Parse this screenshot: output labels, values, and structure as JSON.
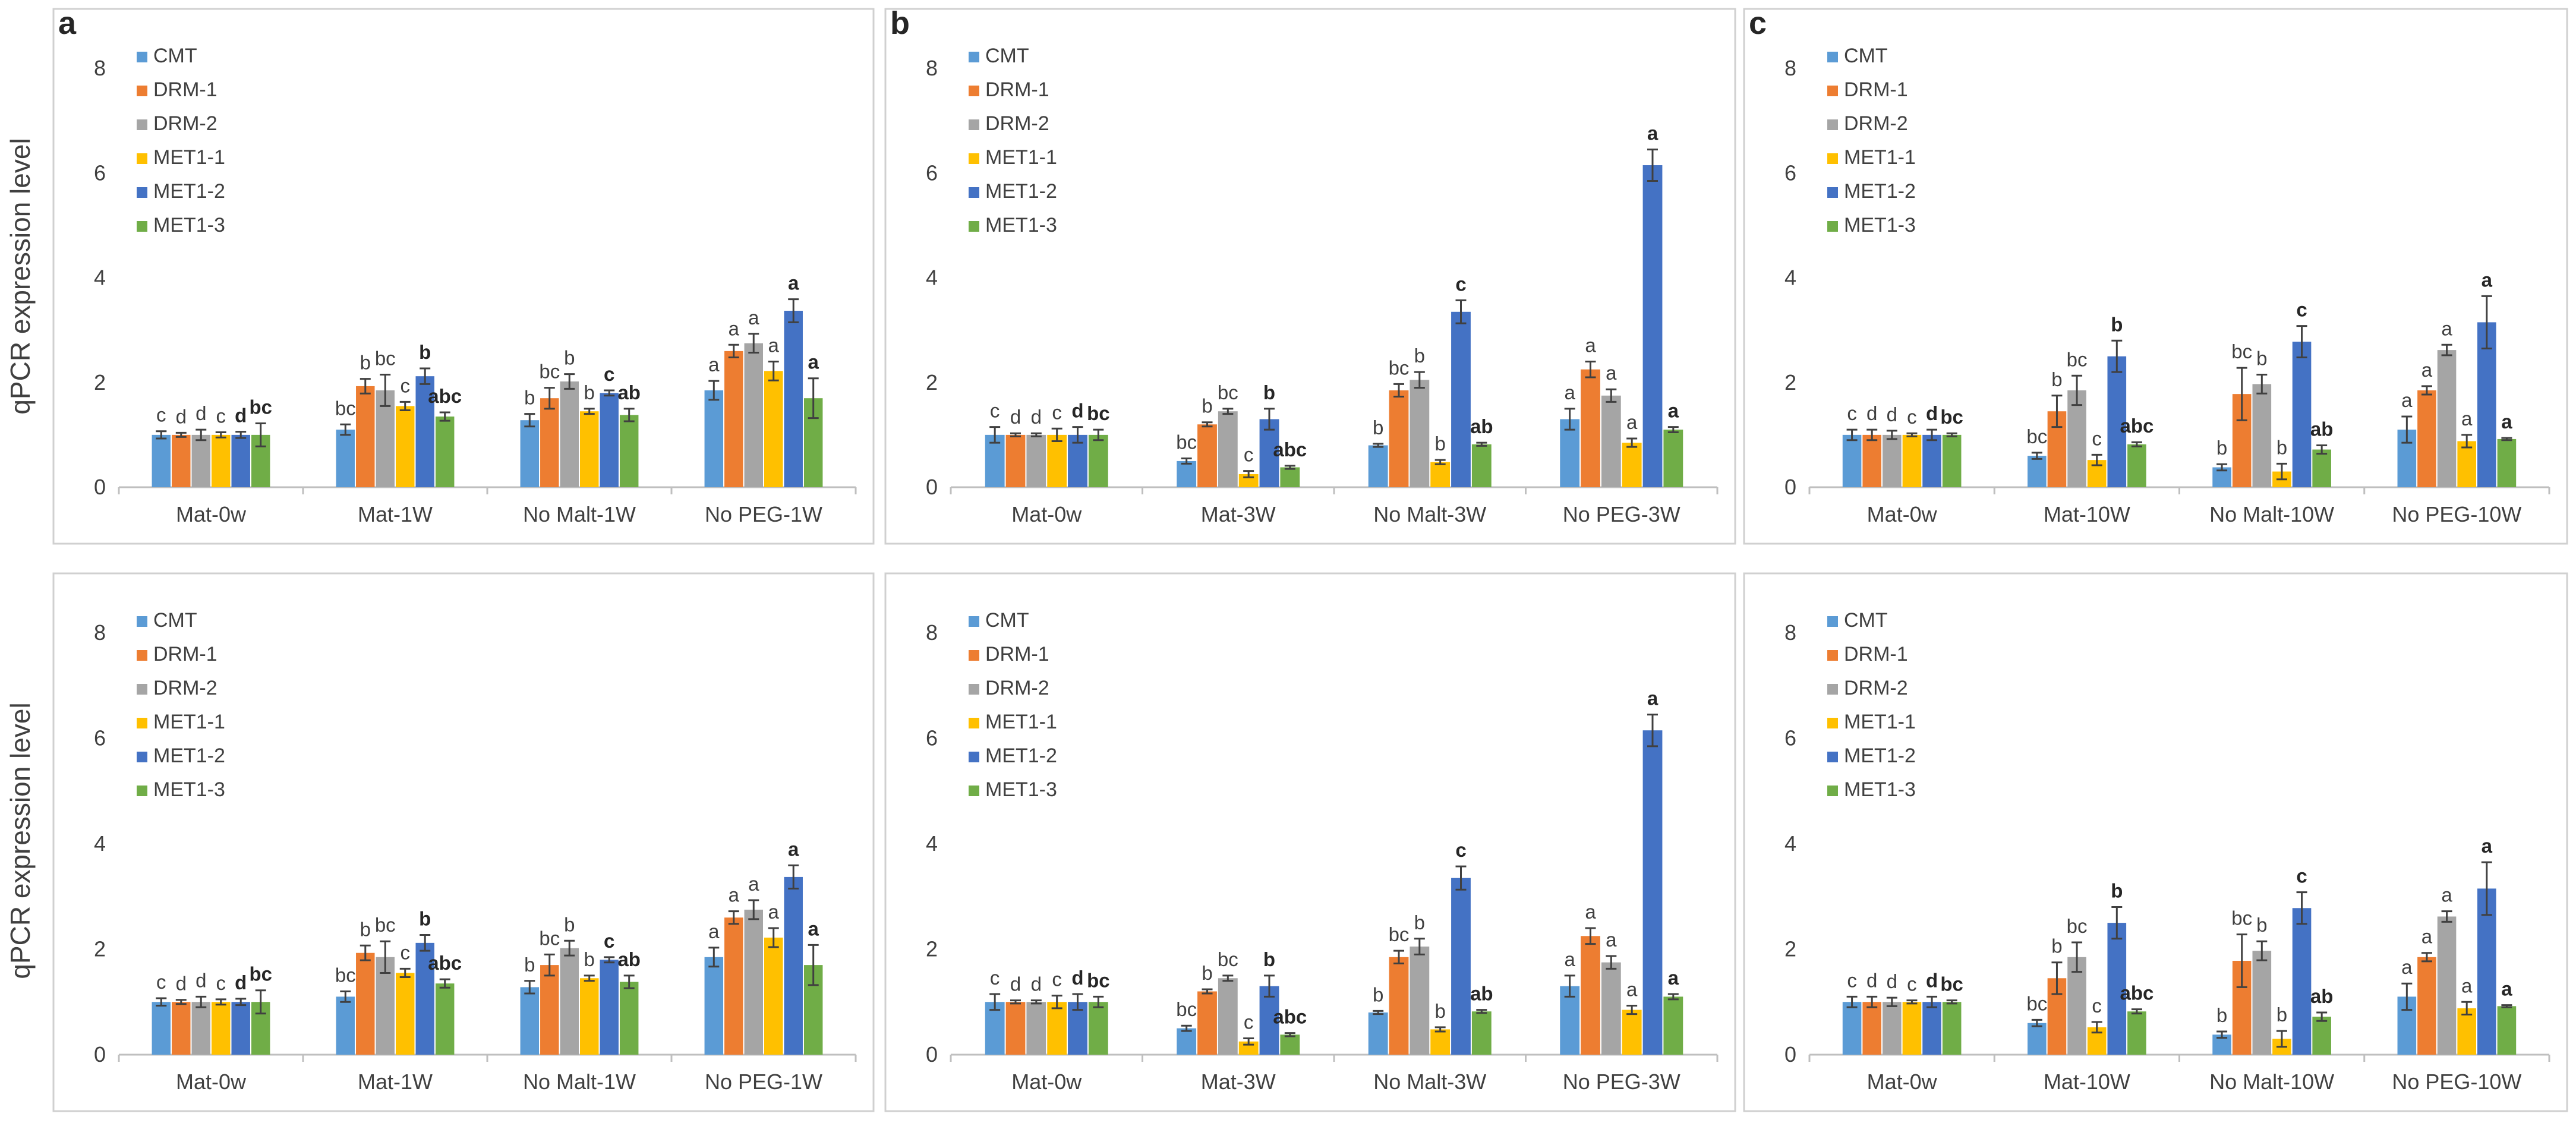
{
  "chart_data": [
    {
      "type": "bar",
      "panel_letter": "a",
      "ylabel": "qPCR expression level",
      "ylim": [
        0,
        8
      ],
      "yticks": [
        "0",
        "2",
        "4",
        "6",
        "8"
      ],
      "categories": [
        "Mat-0w",
        "Mat-1W",
        "No Malt-1W",
        "No PEG-1W"
      ],
      "series": [
        {
          "name": "CMT",
          "color": "#5b9bd5",
          "values": [
            1.0,
            1.1,
            1.28,
            1.85
          ],
          "errors": [
            0.07,
            0.1,
            0.12,
            0.18
          ],
          "letters": [
            "c",
            "bc",
            "b",
            "a"
          ]
        },
        {
          "name": "DRM-1",
          "color": "#ed7d31",
          "values": [
            1.0,
            1.93,
            1.7,
            2.6
          ],
          "errors": [
            0.04,
            0.14,
            0.2,
            0.12
          ],
          "letters": [
            "d",
            "b",
            "bc",
            "a"
          ]
        },
        {
          "name": "DRM-2",
          "color": "#a5a5a5",
          "values": [
            1.0,
            1.85,
            2.02,
            2.75
          ],
          "errors": [
            0.1,
            0.3,
            0.14,
            0.18
          ],
          "letters": [
            "d",
            "bc",
            "b",
            "a"
          ]
        },
        {
          "name": "MET1-1",
          "color": "#ffc000",
          "values": [
            1.0,
            1.55,
            1.45,
            2.22
          ],
          "errors": [
            0.05,
            0.08,
            0.05,
            0.18
          ],
          "letters": [
            "c",
            "c",
            "b",
            "a"
          ]
        },
        {
          "name": "MET1-2",
          "color": "#4472c4",
          "values": [
            1.0,
            2.12,
            1.8,
            3.37
          ],
          "errors": [
            0.06,
            0.15,
            0.05,
            0.22
          ],
          "letters": [
            "d",
            "b",
            "c",
            "a"
          ]
        },
        {
          "name": "MET1-3",
          "color": "#70ad47",
          "values": [
            1.0,
            1.35,
            1.38,
            1.7
          ],
          "errors": [
            0.22,
            0.08,
            0.12,
            0.38
          ],
          "letters": [
            "bc",
            "abc",
            "ab",
            "a"
          ]
        }
      ]
    },
    {
      "type": "bar",
      "panel_letter": "b",
      "ylabel": "",
      "ylim": [
        0,
        8
      ],
      "yticks": [
        "0",
        "2",
        "4",
        "6",
        "8"
      ],
      "categories": [
        "Mat-0w",
        "Mat-3W",
        "No Malt-3W",
        "No PEG-3W"
      ],
      "series": [
        {
          "name": "CMT",
          "color": "#5b9bd5",
          "values": [
            1.0,
            0.5,
            0.8,
            1.3
          ],
          "errors": [
            0.15,
            0.05,
            0.03,
            0.2
          ],
          "letters": [
            "c",
            "bc",
            "b",
            "a"
          ]
        },
        {
          "name": "DRM-1",
          "color": "#ed7d31",
          "values": [
            1.0,
            1.2,
            1.85,
            2.25
          ],
          "errors": [
            0.03,
            0.04,
            0.12,
            0.15
          ],
          "letters": [
            "d",
            "b",
            "bc",
            "a"
          ]
        },
        {
          "name": "DRM-2",
          "color": "#a5a5a5",
          "values": [
            1.0,
            1.45,
            2.05,
            1.75
          ],
          "errors": [
            0.03,
            0.05,
            0.15,
            0.12
          ],
          "letters": [
            "d",
            "bc",
            "b",
            "a"
          ]
        },
        {
          "name": "MET1-1",
          "color": "#ffc000",
          "values": [
            1.0,
            0.25,
            0.48,
            0.85
          ],
          "errors": [
            0.12,
            0.06,
            0.04,
            0.08
          ],
          "letters": [
            "c",
            "c",
            "b",
            "a"
          ]
        },
        {
          "name": "MET1-2",
          "color": "#4472c4",
          "values": [
            1.0,
            1.3,
            3.35,
            6.15
          ],
          "errors": [
            0.15,
            0.2,
            0.22,
            0.3
          ],
          "letters": [
            "d",
            "b",
            "c",
            "a"
          ]
        },
        {
          "name": "MET1-3",
          "color": "#70ad47",
          "values": [
            1.0,
            0.38,
            0.82,
            1.1
          ],
          "errors": [
            0.1,
            0.03,
            0.03,
            0.05
          ],
          "letters": [
            "bc",
            "abc",
            "ab",
            "a"
          ]
        }
      ]
    },
    {
      "type": "bar",
      "panel_letter": "c",
      "ylabel": "",
      "ylim": [
        0,
        8
      ],
      "yticks": [
        "0",
        "2",
        "4",
        "6",
        "8"
      ],
      "categories": [
        "Mat-0w",
        "Mat-10W",
        "No Malt-10W",
        "No PEG-10W"
      ],
      "series": [
        {
          "name": "CMT",
          "color": "#5b9bd5",
          "values": [
            1.0,
            0.6,
            0.38,
            1.1
          ],
          "errors": [
            0.1,
            0.06,
            0.06,
            0.25
          ],
          "letters": [
            "c",
            "bc",
            "b",
            "a"
          ]
        },
        {
          "name": "DRM-1",
          "color": "#ed7d31",
          "values": [
            1.0,
            1.45,
            1.78,
            1.85
          ],
          "errors": [
            0.1,
            0.3,
            0.5,
            0.08
          ],
          "letters": [
            "d",
            "b",
            "bc",
            "a"
          ]
        },
        {
          "name": "DRM-2",
          "color": "#a5a5a5",
          "values": [
            1.0,
            1.85,
            1.97,
            2.62
          ],
          "errors": [
            0.08,
            0.28,
            0.18,
            0.1
          ],
          "letters": [
            "d",
            "bc",
            "b",
            "a"
          ]
        },
        {
          "name": "MET1-1",
          "color": "#ffc000",
          "values": [
            1.0,
            0.52,
            0.3,
            0.88
          ],
          "errors": [
            0.03,
            0.1,
            0.15,
            0.12
          ],
          "letters": [
            "c",
            "c",
            "b",
            "a"
          ]
        },
        {
          "name": "MET1-2",
          "color": "#4472c4",
          "values": [
            1.0,
            2.5,
            2.78,
            3.15
          ],
          "errors": [
            0.1,
            0.3,
            0.3,
            0.5
          ],
          "letters": [
            "d",
            "b",
            "c",
            "a"
          ]
        },
        {
          "name": "MET1-3",
          "color": "#70ad47",
          "values": [
            1.0,
            0.82,
            0.72,
            0.92
          ],
          "errors": [
            0.03,
            0.04,
            0.08,
            0.02
          ],
          "letters": [
            "bc",
            "abc",
            "ab",
            "a"
          ]
        }
      ]
    },
    {
      "type": "bar",
      "panel_letter": "",
      "ylabel": "qPCR expression level",
      "ylim": [
        0,
        8
      ],
      "yticks": [
        "0",
        "2",
        "4",
        "6",
        "8"
      ],
      "categories": [
        "Mat-0w",
        "Mat-1W",
        "No Malt-1W",
        "No PEG-1W"
      ],
      "series": [
        {
          "name": "CMT",
          "color": "#5b9bd5",
          "values": [
            1.0,
            1.1,
            1.28,
            1.85
          ],
          "errors": [
            0.07,
            0.1,
            0.12,
            0.18
          ],
          "letters": [
            "c",
            "bc",
            "b",
            "a"
          ]
        },
        {
          "name": "DRM-1",
          "color": "#ed7d31",
          "values": [
            1.0,
            1.93,
            1.7,
            2.6
          ],
          "errors": [
            0.04,
            0.14,
            0.2,
            0.12
          ],
          "letters": [
            "d",
            "b",
            "bc",
            "a"
          ]
        },
        {
          "name": "DRM-2",
          "color": "#a5a5a5",
          "values": [
            1.0,
            1.85,
            2.02,
            2.75
          ],
          "errors": [
            0.1,
            0.3,
            0.14,
            0.18
          ],
          "letters": [
            "d",
            "bc",
            "b",
            "a"
          ]
        },
        {
          "name": "MET1-1",
          "color": "#ffc000",
          "values": [
            1.0,
            1.55,
            1.45,
            2.22
          ],
          "errors": [
            0.05,
            0.08,
            0.05,
            0.18
          ],
          "letters": [
            "c",
            "c",
            "b",
            "a"
          ]
        },
        {
          "name": "MET1-2",
          "color": "#4472c4",
          "values": [
            1.0,
            2.12,
            1.8,
            3.37
          ],
          "errors": [
            0.06,
            0.15,
            0.05,
            0.22
          ],
          "letters": [
            "d",
            "b",
            "c",
            "a"
          ]
        },
        {
          "name": "MET1-3",
          "color": "#70ad47",
          "values": [
            1.0,
            1.35,
            1.38,
            1.7
          ],
          "errors": [
            0.22,
            0.08,
            0.12,
            0.38
          ],
          "letters": [
            "bc",
            "abc",
            "ab",
            "a"
          ]
        }
      ]
    },
    {
      "type": "bar",
      "panel_letter": "",
      "ylabel": "",
      "ylim": [
        0,
        8
      ],
      "yticks": [
        "0",
        "2",
        "4",
        "6",
        "8"
      ],
      "categories": [
        "Mat-0w",
        "Mat-3W",
        "No Malt-3W",
        "No PEG-3W"
      ],
      "series": [
        {
          "name": "CMT",
          "color": "#5b9bd5",
          "values": [
            1.0,
            0.5,
            0.8,
            1.3
          ],
          "errors": [
            0.15,
            0.05,
            0.03,
            0.2
          ],
          "letters": [
            "c",
            "bc",
            "b",
            "a"
          ]
        },
        {
          "name": "DRM-1",
          "color": "#ed7d31",
          "values": [
            1.0,
            1.2,
            1.85,
            2.25
          ],
          "errors": [
            0.03,
            0.04,
            0.12,
            0.15
          ],
          "letters": [
            "d",
            "b",
            "bc",
            "a"
          ]
        },
        {
          "name": "DRM-2",
          "color": "#a5a5a5",
          "values": [
            1.0,
            1.45,
            2.05,
            1.75
          ],
          "errors": [
            0.03,
            0.05,
            0.15,
            0.12
          ],
          "letters": [
            "d",
            "bc",
            "b",
            "a"
          ]
        },
        {
          "name": "MET1-1",
          "color": "#ffc000",
          "values": [
            1.0,
            0.25,
            0.48,
            0.85
          ],
          "errors": [
            0.12,
            0.06,
            0.04,
            0.08
          ],
          "letters": [
            "c",
            "c",
            "b",
            "a"
          ]
        },
        {
          "name": "MET1-2",
          "color": "#4472c4",
          "values": [
            1.0,
            1.3,
            3.35,
            6.15
          ],
          "errors": [
            0.15,
            0.2,
            0.22,
            0.3
          ],
          "letters": [
            "d",
            "b",
            "c",
            "a"
          ]
        },
        {
          "name": "MET1-3",
          "color": "#70ad47",
          "values": [
            1.0,
            0.38,
            0.82,
            1.1
          ],
          "errors": [
            0.1,
            0.03,
            0.03,
            0.05
          ],
          "letters": [
            "bc",
            "abc",
            "ab",
            "a"
          ]
        }
      ]
    },
    {
      "type": "bar",
      "panel_letter": "",
      "ylabel": "",
      "ylim": [
        0,
        8
      ],
      "yticks": [
        "0",
        "2",
        "4",
        "6",
        "8"
      ],
      "categories": [
        "Mat-0w",
        "Mat-10W",
        "No Malt-10W",
        "No PEG-10W"
      ],
      "series": [
        {
          "name": "CMT",
          "color": "#5b9bd5",
          "values": [
            1.0,
            0.6,
            0.38,
            1.1
          ],
          "errors": [
            0.1,
            0.06,
            0.06,
            0.25
          ],
          "letters": [
            "c",
            "bc",
            "b",
            "a"
          ]
        },
        {
          "name": "DRM-1",
          "color": "#ed7d31",
          "values": [
            1.0,
            1.45,
            1.78,
            1.85
          ],
          "errors": [
            0.1,
            0.3,
            0.5,
            0.08
          ],
          "letters": [
            "d",
            "b",
            "bc",
            "a"
          ]
        },
        {
          "name": "DRM-2",
          "color": "#a5a5a5",
          "values": [
            1.0,
            1.85,
            1.97,
            2.62
          ],
          "errors": [
            0.08,
            0.28,
            0.18,
            0.1
          ],
          "letters": [
            "d",
            "bc",
            "b",
            "a"
          ]
        },
        {
          "name": "MET1-1",
          "color": "#ffc000",
          "values": [
            1.0,
            0.52,
            0.3,
            0.88
          ],
          "errors": [
            0.03,
            0.1,
            0.15,
            0.12
          ],
          "letters": [
            "c",
            "c",
            "b",
            "a"
          ]
        },
        {
          "name": "MET1-2",
          "color": "#4472c4",
          "values": [
            1.0,
            2.5,
            2.78,
            3.15
          ],
          "errors": [
            0.1,
            0.3,
            0.3,
            0.5
          ],
          "letters": [
            "d",
            "b",
            "c",
            "a"
          ]
        },
        {
          "name": "MET1-3",
          "color": "#70ad47",
          "values": [
            1.0,
            0.82,
            0.72,
            0.92
          ],
          "errors": [
            0.03,
            0.04,
            0.08,
            0.02
          ],
          "letters": [
            "bc",
            "abc",
            "ab",
            "a"
          ]
        }
      ]
    }
  ]
}
